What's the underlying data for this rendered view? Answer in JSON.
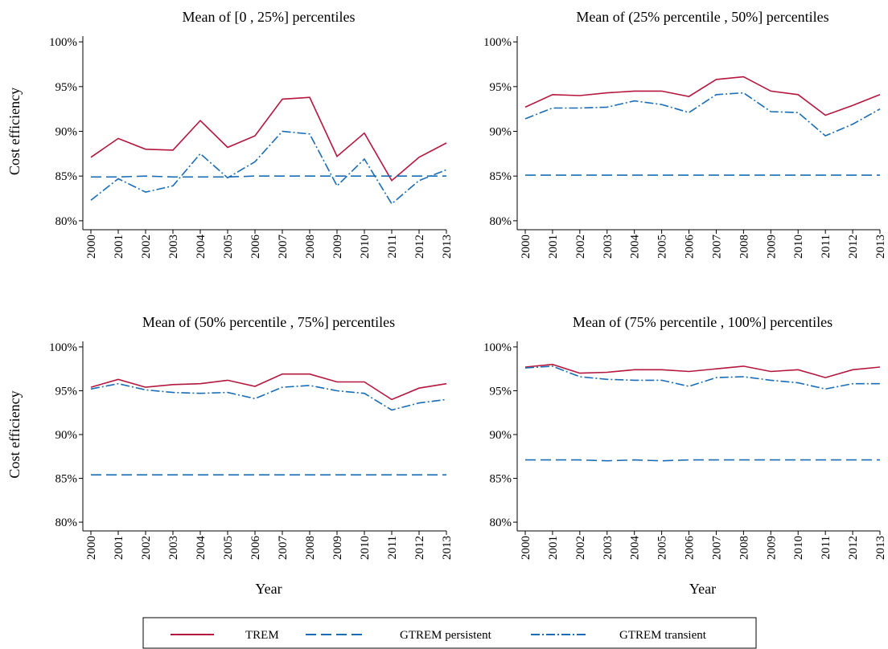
{
  "chart_data": [
    {
      "type": "line",
      "title": "Mean of [0 , 25%] percentiles",
      "ylabel": "Cost efficiency",
      "categories": [
        "2000",
        "2001",
        "2002",
        "2003",
        "2004",
        "2005",
        "2006",
        "2007",
        "2008",
        "2009",
        "2010",
        "2011",
        "2012",
        "2013"
      ],
      "ylim": [
        79,
        101
      ],
      "yticks": [
        {
          "value": 80,
          "label": "80%"
        },
        {
          "value": 85,
          "label": "85%"
        },
        {
          "value": 90,
          "label": "90%"
        },
        {
          "value": 95,
          "label": "95%"
        },
        {
          "value": 100,
          "label": "100%"
        }
      ],
      "series": [
        {
          "name": "TREM",
          "color": "#b5163d",
          "style": "solid",
          "values": [
            87.1,
            89.2,
            88.0,
            87.9,
            91.2,
            88.2,
            89.5,
            93.6,
            93.8,
            87.2,
            89.8,
            84.5,
            87.1,
            88.7
          ]
        },
        {
          "name": "GTREM persistent",
          "color": "#1a6db5",
          "style": "dash",
          "values": [
            84.9,
            84.9,
            85.0,
            84.9,
            84.9,
            84.9,
            85.0,
            85.0,
            85.0,
            85.0,
            85.0,
            85.0,
            85.0,
            85.0
          ]
        },
        {
          "name": "GTREM transient",
          "color": "#1a6db5",
          "style": "dashdot",
          "values": [
            82.3,
            84.7,
            83.2,
            83.9,
            87.5,
            84.8,
            86.6,
            90.0,
            89.7,
            83.9,
            86.9,
            81.9,
            84.5,
            85.7
          ]
        }
      ]
    },
    {
      "type": "line",
      "title": "Mean of (25% percentile , 50%] percentiles",
      "categories": [
        "2000",
        "2001",
        "2002",
        "2003",
        "2004",
        "2005",
        "2006",
        "2007",
        "2008",
        "2009",
        "2010",
        "2011",
        "2012",
        "2013"
      ],
      "ylim": [
        79,
        101
      ],
      "yticks": [
        {
          "value": 80,
          "label": "80%"
        },
        {
          "value": 85,
          "label": "85%"
        },
        {
          "value": 90,
          "label": "90%"
        },
        {
          "value": 95,
          "label": "95%"
        },
        {
          "value": 100,
          "label": "100%"
        }
      ],
      "series": [
        {
          "name": "TREM",
          "color": "#b5163d",
          "style": "solid",
          "values": [
            92.7,
            94.1,
            94.0,
            94.3,
            94.5,
            94.5,
            93.9,
            95.8,
            96.1,
            94.5,
            94.1,
            91.8,
            92.9,
            94.1
          ]
        },
        {
          "name": "GTREM persistent",
          "color": "#1a6db5",
          "style": "dash",
          "values": [
            85.1,
            85.1,
            85.1,
            85.1,
            85.1,
            85.1,
            85.1,
            85.1,
            85.1,
            85.1,
            85.1,
            85.1,
            85.1,
            85.1
          ]
        },
        {
          "name": "GTREM transient",
          "color": "#1a6db5",
          "style": "dashdot",
          "values": [
            91.4,
            92.6,
            92.6,
            92.7,
            93.4,
            93.0,
            92.1,
            94.1,
            94.3,
            92.2,
            92.1,
            89.5,
            90.8,
            92.5
          ]
        }
      ]
    },
    {
      "type": "line",
      "title": "Mean of (50% percentile , 75%] percentiles",
      "ylabel": "Cost efficiency",
      "xlabel": "Year",
      "categories": [
        "2000",
        "2001",
        "2002",
        "2003",
        "2004",
        "2005",
        "2006",
        "2007",
        "2008",
        "2009",
        "2010",
        "2011",
        "2012",
        "2013"
      ],
      "ylim": [
        79,
        101
      ],
      "yticks": [
        {
          "value": 80,
          "label": "80%"
        },
        {
          "value": 85,
          "label": "85%"
        },
        {
          "value": 90,
          "label": "90%"
        },
        {
          "value": 95,
          "label": "95%"
        },
        {
          "value": 100,
          "label": "100%"
        }
      ],
      "series": [
        {
          "name": "TREM",
          "color": "#b5163d",
          "style": "solid",
          "values": [
            95.4,
            96.3,
            95.4,
            95.7,
            95.8,
            96.2,
            95.5,
            96.9,
            96.9,
            96.0,
            96.0,
            94.0,
            95.3,
            95.8
          ]
        },
        {
          "name": "GTREM persistent",
          "color": "#1a6db5",
          "style": "dash",
          "values": [
            85.4,
            85.4,
            85.4,
            85.4,
            85.4,
            85.4,
            85.4,
            85.4,
            85.4,
            85.4,
            85.4,
            85.4,
            85.4,
            85.4
          ]
        },
        {
          "name": "GTREM transient",
          "color": "#1a6db5",
          "style": "dashdot",
          "values": [
            95.2,
            95.8,
            95.1,
            94.8,
            94.7,
            94.8,
            94.1,
            95.4,
            95.6,
            95.0,
            94.7,
            92.8,
            93.6,
            94.0
          ]
        }
      ]
    },
    {
      "type": "line",
      "title": "Mean of (75% percentile , 100%] percentiles",
      "xlabel": "Year",
      "categories": [
        "2000",
        "2001",
        "2002",
        "2003",
        "2004",
        "2005",
        "2006",
        "2007",
        "2008",
        "2009",
        "2010",
        "2011",
        "2012",
        "2013"
      ],
      "ylim": [
        79,
        101
      ],
      "yticks": [
        {
          "value": 80,
          "label": "80%"
        },
        {
          "value": 85,
          "label": "85%"
        },
        {
          "value": 90,
          "label": "90%"
        },
        {
          "value": 95,
          "label": "95%"
        },
        {
          "value": 100,
          "label": "100%"
        }
      ],
      "series": [
        {
          "name": "TREM",
          "color": "#b5163d",
          "style": "solid",
          "values": [
            97.7,
            98.0,
            97.0,
            97.1,
            97.4,
            97.4,
            97.2,
            97.5,
            97.8,
            97.2,
            97.4,
            96.5,
            97.4,
            97.7
          ]
        },
        {
          "name": "GTREM persistent",
          "color": "#1a6db5",
          "style": "dash",
          "values": [
            87.1,
            87.1,
            87.1,
            87.0,
            87.1,
            87.0,
            87.1,
            87.1,
            87.1,
            87.1,
            87.1,
            87.1,
            87.1,
            87.1
          ]
        },
        {
          "name": "GTREM transient",
          "color": "#1a6db5",
          "style": "dashdot",
          "values": [
            97.6,
            97.8,
            96.6,
            96.3,
            96.2,
            96.2,
            95.5,
            96.5,
            96.6,
            96.2,
            95.9,
            95.2,
            95.8,
            95.8
          ]
        }
      ]
    }
  ]
}
